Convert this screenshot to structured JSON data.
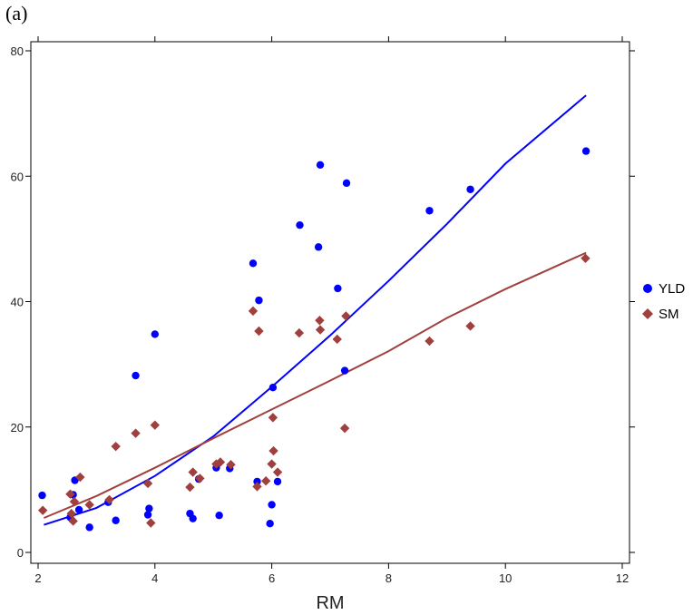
{
  "panel_label": "(a)",
  "chart_data": {
    "type": "scatter",
    "title": "",
    "xlabel": "RM",
    "ylabel": "",
    "xlim": [
      2,
      12
    ],
    "ylim": [
      0,
      80
    ],
    "xticks": [
      2,
      4,
      6,
      8,
      10,
      12
    ],
    "yticks": [
      0,
      20,
      40,
      60,
      80
    ],
    "grid": false,
    "legend_position": "right",
    "series": [
      {
        "name": "YLD",
        "color": "#0000ff",
        "marker": "circle",
        "points": [
          [
            2.07,
            9.1
          ],
          [
            2.55,
            5.6
          ],
          [
            2.6,
            9.2
          ],
          [
            2.63,
            11.5
          ],
          [
            2.7,
            6.8
          ],
          [
            2.88,
            4.0
          ],
          [
            3.2,
            8.0
          ],
          [
            3.33,
            5.1
          ],
          [
            3.67,
            28.2
          ],
          [
            3.88,
            6.0
          ],
          [
            3.9,
            7.0
          ],
          [
            4.0,
            34.8
          ],
          [
            4.6,
            6.2
          ],
          [
            4.65,
            5.4
          ],
          [
            4.75,
            11.7
          ],
          [
            5.05,
            13.5
          ],
          [
            5.1,
            5.9
          ],
          [
            5.28,
            13.4
          ],
          [
            5.68,
            46.1
          ],
          [
            5.75,
            11.3
          ],
          [
            5.78,
            40.2
          ],
          [
            5.97,
            4.6
          ],
          [
            6.0,
            7.6
          ],
          [
            6.02,
            26.3
          ],
          [
            6.1,
            11.3
          ],
          [
            6.48,
            52.2
          ],
          [
            6.8,
            48.7
          ],
          [
            6.83,
            61.8
          ],
          [
            7.13,
            42.1
          ],
          [
            7.25,
            29.0
          ],
          [
            7.28,
            58.9
          ],
          [
            8.7,
            54.5
          ],
          [
            9.4,
            57.9
          ],
          [
            11.38,
            64.0
          ]
        ],
        "fit_line": [
          [
            2.1,
            4.4
          ],
          [
            3.0,
            7.1
          ],
          [
            4.0,
            12.2
          ],
          [
            5.0,
            18.5
          ],
          [
            6.0,
            26.4
          ],
          [
            7.0,
            34.6
          ],
          [
            8.0,
            43.3
          ],
          [
            9.0,
            52.4
          ],
          [
            10.0,
            62.0
          ],
          [
            11.38,
            72.9
          ]
        ]
      },
      {
        "name": "SM",
        "color": "#a0403e",
        "marker": "diamond",
        "points": [
          [
            2.08,
            6.7
          ],
          [
            2.55,
            9.3
          ],
          [
            2.57,
            6.2
          ],
          [
            2.6,
            5.0
          ],
          [
            2.62,
            8.1
          ],
          [
            2.72,
            12.0
          ],
          [
            2.88,
            7.6
          ],
          [
            3.22,
            8.4
          ],
          [
            3.33,
            16.9
          ],
          [
            3.67,
            19.0
          ],
          [
            3.88,
            11.0
          ],
          [
            3.93,
            4.7
          ],
          [
            4.0,
            20.3
          ],
          [
            4.6,
            10.4
          ],
          [
            4.65,
            12.8
          ],
          [
            4.77,
            11.8
          ],
          [
            5.05,
            14.1
          ],
          [
            5.12,
            14.4
          ],
          [
            5.3,
            14.0
          ],
          [
            5.68,
            38.5
          ],
          [
            5.75,
            10.5
          ],
          [
            5.78,
            35.3
          ],
          [
            5.9,
            11.4
          ],
          [
            6.0,
            14.1
          ],
          [
            6.02,
            21.5
          ],
          [
            6.03,
            16.2
          ],
          [
            6.1,
            12.8
          ],
          [
            6.47,
            35.0
          ],
          [
            6.82,
            37.0
          ],
          [
            6.83,
            35.5
          ],
          [
            7.12,
            34.0
          ],
          [
            7.25,
            19.8
          ],
          [
            7.27,
            37.7
          ],
          [
            8.7,
            33.7
          ],
          [
            9.4,
            36.1
          ],
          [
            11.37,
            46.9
          ]
        ],
        "fit_line": [
          [
            2.1,
            5.5
          ],
          [
            3.0,
            9.0
          ],
          [
            4.0,
            13.5
          ],
          [
            5.0,
            18.2
          ],
          [
            6.0,
            22.8
          ],
          [
            7.0,
            27.4
          ],
          [
            8.0,
            32.1
          ],
          [
            9.0,
            37.4
          ],
          [
            10.0,
            42.0
          ],
          [
            11.38,
            47.8
          ]
        ]
      }
    ]
  }
}
